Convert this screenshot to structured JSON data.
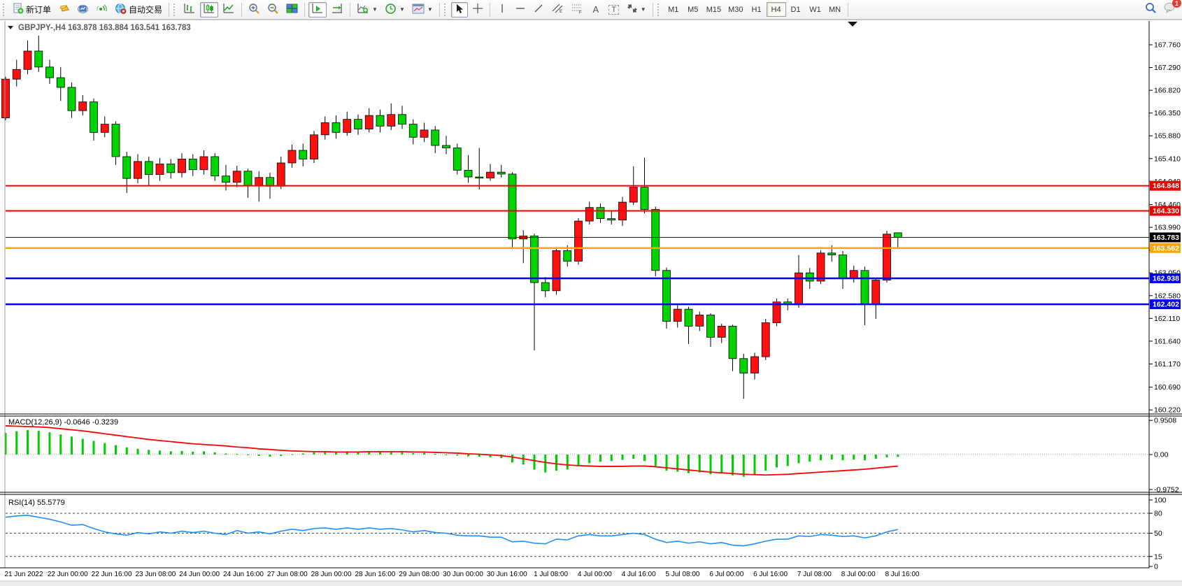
{
  "toolbar": {
    "new_order": "新订单",
    "autotrading": "自动交易",
    "text_tool": "A",
    "label_tool": "T",
    "channel_sub": "E",
    "fibo_sub": "F",
    "timeframes": [
      "M1",
      "M5",
      "M15",
      "M30",
      "H1",
      "H4",
      "D1",
      "W1",
      "MN"
    ],
    "active_timeframe": "H4",
    "notification_badge": "1"
  },
  "chart": {
    "title_symbol": "GBPJPY-,H4",
    "title_ohlc": "163.878 163.884 163.541 163.783",
    "price_axis_labels": [
      "167.760",
      "167.290",
      "166.820",
      "166.350",
      "165.880",
      "165.410",
      "164.940",
      "164.460",
      "163.990",
      "163.520",
      "163.050",
      "162.580",
      "162.110",
      "161.640",
      "161.170",
      "160.690",
      "160.220"
    ],
    "time_axis_labels": [
      "21 Jun 2022",
      "22 Jun 00:00",
      "22 Jun 16:00",
      "23 Jun 08:00",
      "24 Jun 00:00",
      "24 Jun 16:00",
      "27 Jun 08:00",
      "28 Jun 00:00",
      "28 Jun 16:00",
      "29 Jun 08:00",
      "30 Jun 00:00",
      "30 Jun 16:00",
      "1 Jul 08:00",
      "4 Jul 00:00",
      "4 Jul 16:00",
      "5 Jul 08:00",
      "6 Jul 00:00",
      "6 Jul 16:00",
      "7 Jul 08:00",
      "8 Jul 00:00",
      "8 Jul 16:00"
    ],
    "hlines": [
      {
        "price": 164.848,
        "label": "164.848",
        "color": "#f20000",
        "width": 2
      },
      {
        "price": 164.33,
        "label": "164.330",
        "color": "#f20000",
        "width": 2
      },
      {
        "price": 163.562,
        "label": "163.562",
        "color": "#ffa500",
        "width": 2.5
      },
      {
        "price": 162.938,
        "label": "162.938",
        "color": "#0000f0",
        "width": 2.5
      },
      {
        "price": 162.402,
        "label": "162.402",
        "color": "#0000f0",
        "width": 2.5
      }
    ],
    "bid_line": {
      "price": 163.783,
      "label": "163.783",
      "color": "#1a1a1a"
    },
    "colors": {
      "up": "#ff1010",
      "down": "#00d400",
      "wick": "#000000",
      "macd_hist": "#00cc00",
      "macd_signal": "#ff0000",
      "rsi": "#1e90ff"
    },
    "candles_ohlc": [
      [
        166.25,
        167.1,
        166.2,
        167.05
      ],
      [
        167.05,
        167.45,
        166.9,
        167.25
      ],
      [
        167.25,
        167.85,
        167.15,
        167.63
      ],
      [
        167.63,
        167.95,
        167.2,
        167.3
      ],
      [
        167.3,
        167.45,
        166.95,
        167.08
      ],
      [
        167.08,
        167.3,
        166.6,
        166.88
      ],
      [
        166.88,
        166.98,
        166.25,
        166.4
      ],
      [
        166.4,
        166.72,
        166.3,
        166.58
      ],
      [
        166.58,
        166.65,
        165.78,
        165.95
      ],
      [
        165.95,
        166.28,
        165.85,
        166.12
      ],
      [
        166.12,
        166.18,
        165.28,
        165.45
      ],
      [
        165.45,
        165.55,
        164.7,
        165.0
      ],
      [
        165.0,
        165.5,
        164.9,
        165.35
      ],
      [
        165.35,
        165.45,
        164.85,
        165.08
      ],
      [
        165.08,
        165.42,
        164.95,
        165.3
      ],
      [
        165.3,
        165.4,
        165.0,
        165.12
      ],
      [
        165.12,
        165.52,
        165.02,
        165.4
      ],
      [
        165.4,
        165.5,
        165.05,
        165.18
      ],
      [
        165.18,
        165.58,
        165.08,
        165.45
      ],
      [
        165.45,
        165.52,
        164.95,
        165.05
      ],
      [
        165.05,
        165.28,
        164.75,
        164.92
      ],
      [
        164.92,
        165.26,
        164.82,
        165.15
      ],
      [
        165.15,
        165.2,
        164.6,
        164.85
      ],
      [
        164.85,
        165.15,
        164.52,
        165.02
      ],
      [
        165.02,
        165.12,
        164.58,
        164.84
      ],
      [
        164.84,
        165.45,
        164.78,
        165.32
      ],
      [
        165.32,
        165.7,
        165.22,
        165.58
      ],
      [
        165.58,
        165.72,
        165.25,
        165.4
      ],
      [
        165.4,
        165.98,
        165.32,
        165.9
      ],
      [
        165.9,
        166.28,
        165.8,
        166.15
      ],
      [
        166.15,
        166.3,
        165.82,
        165.95
      ],
      [
        165.95,
        166.38,
        165.88,
        166.22
      ],
      [
        166.22,
        166.32,
        165.9,
        166.02
      ],
      [
        166.02,
        166.45,
        165.95,
        166.3
      ],
      [
        166.3,
        166.42,
        165.95,
        166.08
      ],
      [
        166.08,
        166.55,
        166.0,
        166.32
      ],
      [
        166.32,
        166.5,
        166.02,
        166.12
      ],
      [
        166.12,
        166.22,
        165.7,
        165.85
      ],
      [
        165.85,
        166.15,
        165.75,
        166.0
      ],
      [
        166.0,
        166.08,
        165.52,
        165.68
      ],
      [
        165.68,
        165.88,
        165.5,
        165.63
      ],
      [
        165.63,
        165.72,
        165.08,
        165.17
      ],
      [
        165.17,
        165.48,
        164.91,
        165.03
      ],
      [
        165.03,
        165.63,
        164.77,
        165.01
      ],
      [
        165.01,
        165.3,
        164.95,
        165.13
      ],
      [
        165.13,
        165.28,
        165.02,
        165.09
      ],
      [
        165.09,
        165.13,
        163.54,
        163.75
      ],
      [
        163.75,
        163.93,
        163.25,
        163.81
      ],
      [
        163.81,
        163.86,
        161.45,
        162.85
      ],
      [
        162.85,
        162.96,
        162.55,
        162.68
      ],
      [
        162.68,
        163.58,
        162.6,
        163.51
      ],
      [
        163.51,
        163.62,
        163.18,
        163.29
      ],
      [
        163.29,
        164.18,
        163.22,
        164.12
      ],
      [
        164.12,
        164.52,
        164.05,
        164.4
      ],
      [
        164.4,
        164.48,
        164.08,
        164.17
      ],
      [
        164.17,
        164.32,
        164.05,
        164.14
      ],
      [
        164.14,
        164.62,
        164.02,
        164.51
      ],
      [
        164.51,
        165.25,
        164.45,
        164.82
      ],
      [
        164.82,
        165.43,
        164.28,
        164.36
      ],
      [
        164.36,
        164.42,
        162.98,
        163.1
      ],
      [
        163.1,
        163.16,
        161.9,
        162.05
      ],
      [
        162.05,
        162.38,
        161.92,
        162.3
      ],
      [
        162.3,
        162.35,
        161.58,
        161.95
      ],
      [
        161.95,
        162.25,
        161.85,
        162.18
      ],
      [
        162.18,
        162.22,
        161.52,
        161.72
      ],
      [
        161.72,
        162.0,
        161.6,
        161.95
      ],
      [
        161.95,
        161.98,
        161.02,
        161.28
      ],
      [
        161.28,
        161.38,
        160.45,
        160.98
      ],
      [
        160.98,
        161.4,
        160.85,
        161.32
      ],
      [
        161.32,
        162.1,
        161.25,
        162.02
      ],
      [
        162.02,
        162.52,
        161.95,
        162.45
      ],
      [
        162.45,
        162.52,
        162.28,
        162.4
      ],
      [
        162.4,
        163.42,
        162.33,
        163.05
      ],
      [
        163.05,
        163.15,
        162.72,
        162.88
      ],
      [
        162.88,
        163.52,
        162.82,
        163.46
      ],
      [
        163.46,
        163.62,
        163.28,
        163.42
      ],
      [
        163.42,
        163.5,
        162.72,
        162.94
      ],
      [
        162.94,
        163.2,
        162.85,
        163.1
      ],
      [
        163.1,
        163.18,
        161.97,
        162.4
      ],
      [
        162.4,
        162.95,
        162.1,
        162.9
      ],
      [
        162.9,
        163.92,
        162.85,
        163.85
      ],
      [
        163.878,
        163.884,
        163.541,
        163.783
      ]
    ]
  },
  "macd": {
    "label": "MACD(12,26,9) -0.0646 -0.3239",
    "scale": [
      {
        "text": "0.9508",
        "value": 0.9508
      },
      {
        "text": "0.00",
        "value": 0
      },
      {
        "text": "-0.9752",
        "value": -0.9752
      }
    ],
    "histogram": [
      0.6,
      0.65,
      0.68,
      0.66,
      0.62,
      0.56,
      0.5,
      0.44,
      0.38,
      0.32,
      0.26,
      0.2,
      0.16,
      0.13,
      0.11,
      0.09,
      0.1,
      0.08,
      0.09,
      0.06,
      0.03,
      0.02,
      -0.02,
      -0.04,
      -0.06,
      -0.04,
      0.01,
      0.03,
      0.06,
      0.09,
      0.08,
      0.09,
      0.08,
      0.09,
      0.08,
      0.08,
      0.07,
      0.04,
      0.05,
      0.02,
      0.0,
      -0.03,
      -0.05,
      -0.06,
      -0.08,
      -0.1,
      -0.22,
      -0.28,
      -0.42,
      -0.5,
      -0.45,
      -0.42,
      -0.32,
      -0.24,
      -0.2,
      -0.18,
      -0.15,
      -0.12,
      -0.18,
      -0.32,
      -0.45,
      -0.48,
      -0.52,
      -0.5,
      -0.55,
      -0.52,
      -0.58,
      -0.62,
      -0.55,
      -0.45,
      -0.36,
      -0.32,
      -0.24,
      -0.2,
      -0.16,
      -0.14,
      -0.16,
      -0.14,
      -0.16,
      -0.12,
      -0.08,
      -0.0646
    ],
    "signal": [
      0.8,
      0.79,
      0.78,
      0.77,
      0.75,
      0.72,
      0.69,
      0.66,
      0.62,
      0.58,
      0.54,
      0.5,
      0.46,
      0.42,
      0.39,
      0.36,
      0.33,
      0.3,
      0.28,
      0.26,
      0.24,
      0.21,
      0.19,
      0.16,
      0.14,
      0.12,
      0.1,
      0.09,
      0.08,
      0.08,
      0.07,
      0.07,
      0.07,
      0.08,
      0.08,
      0.08,
      0.08,
      0.07,
      0.07,
      0.06,
      0.05,
      0.04,
      0.02,
      0.01,
      -0.01,
      -0.03,
      -0.07,
      -0.12,
      -0.17,
      -0.22,
      -0.26,
      -0.29,
      -0.31,
      -0.32,
      -0.33,
      -0.33,
      -0.33,
      -0.32,
      -0.32,
      -0.34,
      -0.37,
      -0.4,
      -0.43,
      -0.46,
      -0.49,
      -0.51,
      -0.53,
      -0.55,
      -0.56,
      -0.57,
      -0.56,
      -0.55,
      -0.53,
      -0.51,
      -0.49,
      -0.47,
      -0.45,
      -0.43,
      -0.41,
      -0.38,
      -0.35,
      -0.3239
    ]
  },
  "rsi": {
    "label": "RSI(14) 55.5779",
    "scale": [
      {
        "text": "100",
        "value": 100
      },
      {
        "text": "80",
        "value": 80
      },
      {
        "text": "50",
        "value": 50
      },
      {
        "text": "15",
        "value": 15
      },
      {
        "text": "0",
        "value": 0
      }
    ],
    "dashed_levels": [
      80,
      50,
      15
    ],
    "values": [
      74,
      76,
      77,
      74,
      71,
      67,
      62,
      63,
      57,
      52,
      49,
      47,
      51,
      49,
      52,
      50,
      53,
      51,
      53,
      50,
      48,
      54,
      50,
      52,
      49,
      53,
      56,
      54,
      57,
      58,
      56,
      58,
      56,
      58,
      56,
      57,
      55,
      52,
      54,
      51,
      50,
      47,
      46,
      46,
      44,
      44,
      37,
      38,
      35,
      34,
      41,
      40,
      46,
      48,
      46,
      46,
      48,
      50,
      48,
      41,
      36,
      38,
      35,
      37,
      34,
      36,
      32,
      31,
      34,
      38,
      41,
      41,
      46,
      45,
      48,
      47,
      45,
      46,
      43,
      46,
      52,
      55.58
    ]
  }
}
